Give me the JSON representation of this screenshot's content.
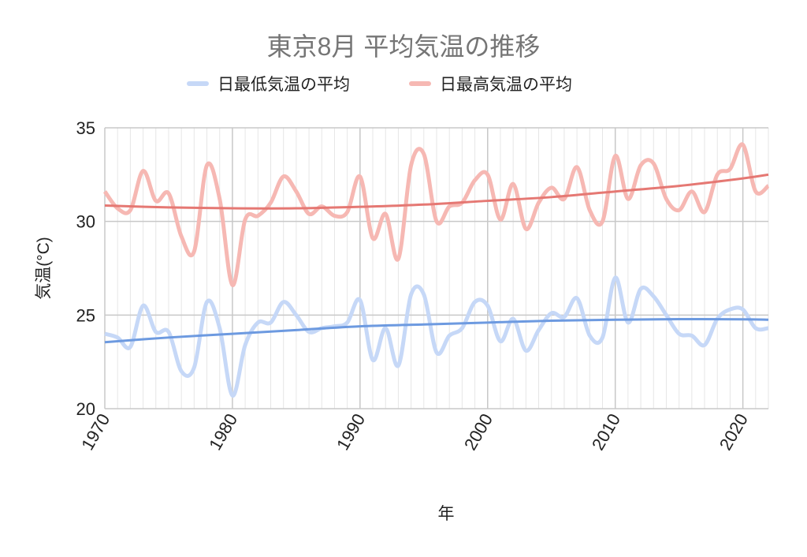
{
  "chart_data": {
    "type": "line",
    "title": "東京8月 平均気温の推移",
    "x_label": "年",
    "y_label": "気温(°C)",
    "x": [
      1970,
      1971,
      1972,
      1973,
      1974,
      1975,
      1976,
      1977,
      1978,
      1979,
      1980,
      1981,
      1982,
      1983,
      1984,
      1985,
      1986,
      1987,
      1988,
      1989,
      1990,
      1991,
      1992,
      1993,
      1994,
      1995,
      1996,
      1997,
      1998,
      1999,
      2000,
      2001,
      2002,
      2003,
      2004,
      2005,
      2006,
      2007,
      2008,
      2009,
      2010,
      2011,
      2012,
      2013,
      2014,
      2015,
      2016,
      2017,
      2018,
      2019,
      2020,
      2021,
      2022
    ],
    "series": [
      {
        "name": "日最低気温の平均",
        "color": "#c6d8f7",
        "values": [
          24.0,
          23.8,
          23.3,
          25.5,
          24.1,
          24.1,
          22.0,
          22.2,
          25.7,
          24.3,
          20.7,
          23.4,
          24.6,
          24.6,
          25.7,
          25.0,
          24.1,
          24.3,
          24.4,
          24.6,
          25.8,
          22.6,
          24.3,
          22.3,
          26.1,
          26.1,
          23.0,
          23.9,
          24.3,
          25.7,
          25.5,
          23.6,
          24.8,
          23.1,
          24.2,
          25.1,
          24.9,
          25.9,
          23.9,
          23.8,
          27.0,
          24.6,
          26.4,
          26.0,
          25.0,
          24.0,
          23.9,
          23.4,
          24.8,
          25.3,
          25.3,
          24.3,
          24.3
        ],
        "trend": {
          "color": "#6d9ae0",
          "x": [
            1970,
            1975,
            1980,
            1985,
            1990,
            1995,
            2000,
            2005,
            2010,
            2015,
            2020,
            2022
          ],
          "values": [
            23.55,
            23.8,
            24.0,
            24.2,
            24.4,
            24.5,
            24.6,
            24.7,
            24.75,
            24.78,
            24.77,
            24.75
          ]
        }
      },
      {
        "name": "日最高気温の平均",
        "color": "#f6b8b3",
        "values": [
          31.6,
          30.7,
          30.6,
          32.7,
          31.1,
          31.5,
          29.2,
          28.4,
          33.0,
          31.2,
          26.6,
          30.1,
          30.3,
          31.0,
          32.4,
          31.6,
          30.4,
          30.8,
          30.3,
          30.5,
          32.4,
          29.1,
          30.4,
          28.0,
          33.0,
          33.6,
          30.0,
          30.8,
          31.0,
          32.2,
          32.5,
          30.1,
          32.0,
          29.6,
          31.0,
          31.8,
          31.2,
          32.9,
          30.6,
          30.0,
          33.5,
          31.2,
          33.0,
          33.1,
          31.2,
          30.6,
          31.6,
          30.5,
          32.5,
          32.8,
          34.1,
          31.6,
          31.9
        ],
        "trend": {
          "color": "#e57873",
          "x": [
            1970,
            1975,
            1980,
            1985,
            1990,
            1995,
            2000,
            2005,
            2010,
            2015,
            2020,
            2022
          ],
          "values": [
            30.85,
            30.75,
            30.7,
            30.7,
            30.78,
            30.9,
            31.1,
            31.3,
            31.6,
            31.9,
            32.3,
            32.5
          ]
        }
      }
    ],
    "xlim": [
      1970,
      2022
    ],
    "xticks": [
      1970,
      1980,
      1990,
      2000,
      2010,
      2020
    ],
    "ylim": [
      20,
      35
    ],
    "yticks": [
      20,
      25,
      30,
      35
    ],
    "grid": true,
    "legend": "top",
    "smooth": true
  }
}
